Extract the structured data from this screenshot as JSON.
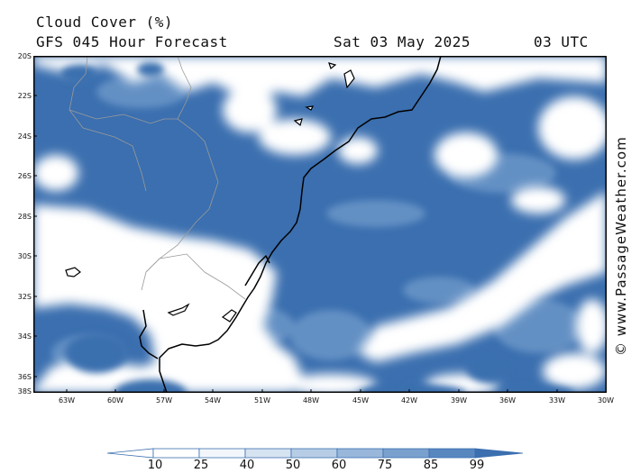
{
  "header": {
    "title": "Cloud Cover (%)",
    "subtitle": "GFS 045 Hour Forecast",
    "date": "Sat 03 May 2025",
    "time": "03 UTC"
  },
  "copyright": "© www.PassageWeather.com",
  "map": {
    "lat_labels": [
      "20S",
      "22S",
      "24S",
      "26S",
      "28S",
      "30S",
      "32S",
      "34S",
      "36S",
      "38S"
    ],
    "lon_labels": [
      "63W",
      "60W",
      "57W",
      "54W",
      "51W",
      "48W",
      "45W",
      "42W",
      "39W",
      "36W",
      "33W",
      "30W"
    ],
    "region": "South Atlantic off southern Brazil, Uruguay and Argentina"
  },
  "legend": {
    "labels": [
      "10",
      "25",
      "40",
      "50",
      "60",
      "75",
      "85",
      "99"
    ],
    "colors": [
      "#ffffff",
      "#f2f6fb",
      "#d6e3f1",
      "#b7cde6",
      "#98b7da",
      "#7aa1ce",
      "#5887c0",
      "#3b6faf"
    ]
  },
  "colors": {
    "cloud_dense": "#3b6faf",
    "cloud_mid": "#7aa1ce",
    "clear": "#ffffff",
    "coast": "#000000",
    "border": "#9a9a9a"
  }
}
